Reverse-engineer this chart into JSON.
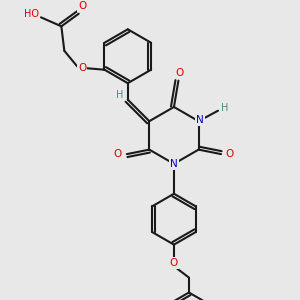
{
  "background_color": "#e8e8e8",
  "bond_color": "#1a1a1a",
  "bond_width": 1.5,
  "atom_colors": {
    "O": "#dd0000",
    "N": "#0000cc",
    "C": "#1a1a1a",
    "H": "#4a8a8a"
  },
  "figsize": [
    3.0,
    3.0
  ],
  "dpi": 100,
  "xlim": [
    0,
    10
  ],
  "ylim": [
    0,
    10
  ]
}
